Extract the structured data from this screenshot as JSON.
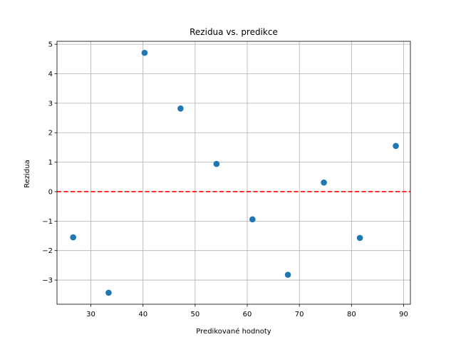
{
  "chart_data": {
    "type": "scatter",
    "title": "Rezidua vs. predikce",
    "xlabel": "Predikované hodnoty",
    "ylabel": "Rezidua",
    "xlim": [
      23.5,
      91.3
    ],
    "ylim": [
      -3.82,
      5.1
    ],
    "xticks": [
      30,
      40,
      50,
      60,
      70,
      80,
      90
    ],
    "yticks": [
      -3,
      -2,
      -1,
      0,
      1,
      2,
      3,
      4,
      5
    ],
    "ytick_labels": [
      "−3",
      "−2",
      "−1",
      "0",
      "1",
      "2",
      "3",
      "4",
      "5"
    ],
    "grid": true,
    "series": [
      {
        "marker_color": "#1f77b4",
        "x": [
          26.6,
          33.4,
          40.3,
          47.2,
          54.1,
          61.0,
          67.8,
          74.7,
          81.6,
          88.5
        ],
        "y": [
          -1.55,
          -3.43,
          4.71,
          2.82,
          0.94,
          -0.94,
          -2.82,
          0.31,
          -1.57,
          1.55
        ]
      }
    ],
    "reference_line": {
      "y": 0,
      "color": "#ff0000",
      "style": "dashed"
    }
  }
}
